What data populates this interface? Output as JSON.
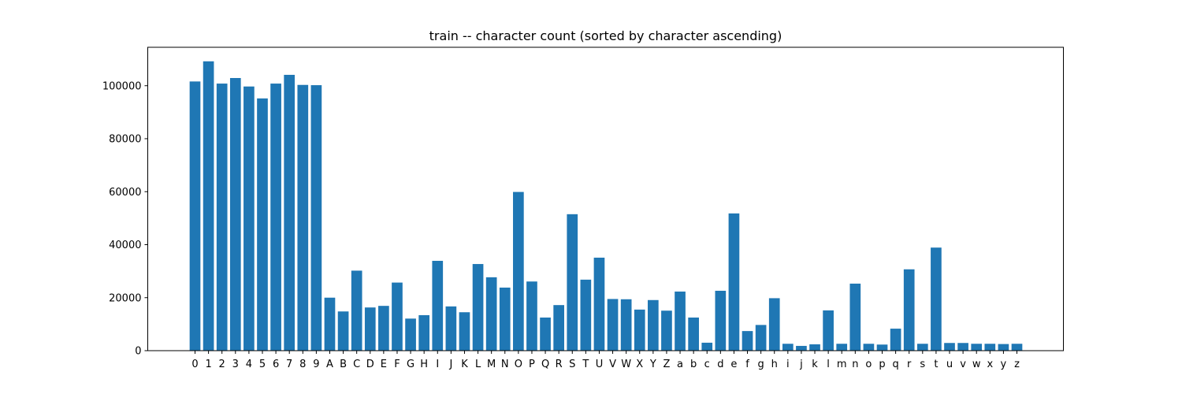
{
  "chart_data": {
    "type": "bar",
    "title": "train -- character count (sorted by character ascending)",
    "xlabel": "",
    "ylabel": "",
    "ylim": [
      0,
      114500
    ],
    "yticks": [
      0,
      20000,
      40000,
      60000,
      80000,
      100000
    ],
    "ytick_labels": [
      "0",
      "20000",
      "40000",
      "60000",
      "80000",
      "100000"
    ],
    "grid": false,
    "bar_color": "#1f77b4",
    "categories": [
      "0",
      "1",
      "2",
      "3",
      "4",
      "5",
      "6",
      "7",
      "8",
      "9",
      "A",
      "B",
      "C",
      "D",
      "E",
      "F",
      "G",
      "H",
      "I",
      "J",
      "K",
      "L",
      "M",
      "N",
      "O",
      "P",
      "Q",
      "R",
      "S",
      "T",
      "U",
      "V",
      "W",
      "X",
      "Y",
      "Z",
      "a",
      "b",
      "c",
      "d",
      "e",
      "f",
      "g",
      "h",
      "i",
      "j",
      "k",
      "l",
      "m",
      "n",
      "o",
      "p",
      "q",
      "r",
      "s",
      "t",
      "u",
      "v",
      "w",
      "x",
      "y",
      "z"
    ],
    "values": [
      101600,
      109200,
      100800,
      102900,
      99700,
      95200,
      100800,
      104100,
      100300,
      100200,
      20000,
      14800,
      30200,
      16300,
      16900,
      25700,
      12100,
      13400,
      33900,
      16700,
      14500,
      32700,
      27700,
      23800,
      59900,
      26100,
      12500,
      17200,
      51500,
      26800,
      35100,
      19500,
      19400,
      15500,
      19100,
      15100,
      22300,
      12500,
      3000,
      22600,
      51800,
      7400,
      9700,
      19800,
      2600,
      1800,
      2400,
      15200,
      2600,
      25300,
      2600,
      2300,
      8300,
      30700,
      2600,
      38900,
      2900,
      2900,
      2600,
      2600,
      2500,
      2600
    ]
  }
}
